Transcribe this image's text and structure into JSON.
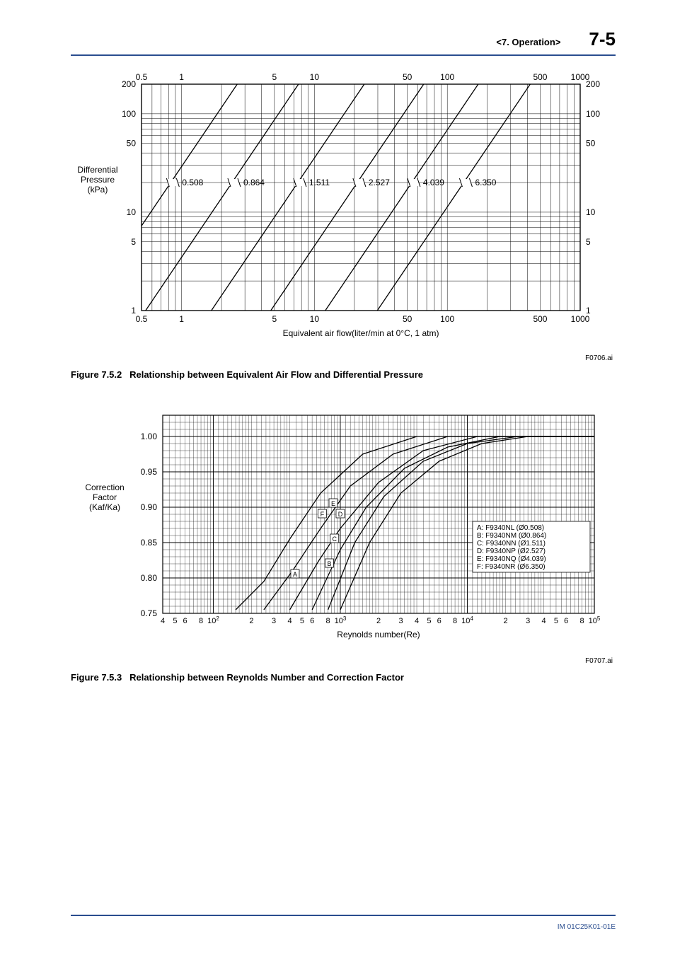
{
  "header": {
    "section": "<7.  Operation>",
    "page": "7-5"
  },
  "footer": {
    "doc_id": "IM 01C25K01-01E"
  },
  "figure1": {
    "caption_num": "Figure 7.5.2",
    "caption_text": "Relationship between Equivalent Air Flow and Differential Pressure",
    "fig_id": "F0706.ai",
    "xlabel": "Equivalent air flow(liter/min at 0°C, 1 atm)",
    "ylabel_lines": [
      "Differential",
      "Pressure",
      "(kPa)"
    ],
    "x_ticks": [
      0.5,
      1,
      5,
      10,
      50,
      100,
      500,
      1000
    ],
    "y_ticks": [
      1,
      5,
      10,
      50,
      100,
      200
    ],
    "line_labels": [
      "0.508",
      "0.864",
      "1.511",
      "2.527",
      "4.039",
      "6.350"
    ],
    "plot_color": "#000000",
    "grid_color": "#000000",
    "background": "#ffffff",
    "x_range": [
      0.5,
      1000
    ],
    "y_range": [
      1,
      200
    ],
    "scale": "log-log",
    "lines_x_at_dp20": [
      0.83,
      2.4,
      7.5,
      21,
      54,
      133
    ],
    "label_font_size": 12,
    "tick_font_size": 12
  },
  "figure2": {
    "caption_num": "Figure 7.5.3",
    "caption_text": "Relationship between Reynolds Number and Correction Factor",
    "fig_id": "F0707.ai",
    "xlabel": "Reynolds number(Re)",
    "ylabel_lines": [
      "Correction",
      "Factor",
      "(Kaf/Ka)"
    ],
    "x_range": [
      40,
      100000
    ],
    "y_range": [
      0.75,
      1.03
    ],
    "y_ticks": [
      0.75,
      0.8,
      0.85,
      0.9,
      0.95,
      1.0
    ],
    "x_decades": [
      100,
      1000,
      10000,
      100000
    ],
    "x_mantissa_labels": [
      "2",
      "3",
      "4",
      "5",
      "6",
      "8"
    ],
    "legend_lines": [
      "A: F9340NL (Ø0.508)",
      "B: F9340NM (Ø0.864)",
      "C: F9340NN (Ø1.511)",
      "D: F9340NP (Ø2.527)",
      "E: F9340NQ (Ø4.039)",
      "F: F9340NR (Ø6.350)"
    ],
    "curve_markers": [
      "A",
      "B",
      "C",
      "D",
      "E",
      "F"
    ],
    "curves": {
      "A": [
        [
          150,
          0.755
        ],
        [
          250,
          0.795
        ],
        [
          400,
          0.855
        ],
        [
          700,
          0.92
        ],
        [
          1500,
          0.975
        ],
        [
          4000,
          1.0
        ],
        [
          100000,
          1.0
        ]
      ],
      "B": [
        [
          250,
          0.755
        ],
        [
          420,
          0.81
        ],
        [
          700,
          0.87
        ],
        [
          1200,
          0.93
        ],
        [
          2600,
          0.975
        ],
        [
          7000,
          1.0
        ],
        [
          100000,
          1.0
        ]
      ],
      "C": [
        [
          400,
          0.755
        ],
        [
          680,
          0.825
        ],
        [
          1000,
          0.87
        ],
        [
          2000,
          0.935
        ],
        [
          4500,
          0.98
        ],
        [
          12000,
          1.0
        ],
        [
          100000,
          1.0
        ]
      ],
      "D": [
        [
          600,
          0.755
        ],
        [
          1000,
          0.84
        ],
        [
          1600,
          0.9
        ],
        [
          3200,
          0.955
        ],
        [
          7000,
          0.985
        ],
        [
          18000,
          1.0
        ],
        [
          100000,
          1.0
        ]
      ],
      "E": [
        [
          800,
          0.755
        ],
        [
          1300,
          0.85
        ],
        [
          2200,
          0.915
        ],
        [
          4500,
          0.965
        ],
        [
          10000,
          0.99
        ],
        [
          25000,
          1.0
        ],
        [
          100000,
          1.0
        ]
      ],
      "F": [
        [
          1000,
          0.755
        ],
        [
          1700,
          0.85
        ],
        [
          3000,
          0.92
        ],
        [
          6000,
          0.965
        ],
        [
          13000,
          0.99
        ],
        [
          30000,
          1.0
        ],
        [
          100000,
          1.0
        ]
      ]
    },
    "marker_positions": {
      "A": [
        440,
        0.805
      ],
      "B": [
        820,
        0.82
      ],
      "C": [
        900,
        0.855
      ],
      "D": [
        1000,
        0.89
      ],
      "E": [
        880,
        0.905
      ],
      "F": [
        720,
        0.89
      ]
    },
    "plot_color": "#000000",
    "grid_color": "#000000",
    "background": "#ffffff",
    "label_font_size": 12,
    "tick_font_size": 12
  }
}
